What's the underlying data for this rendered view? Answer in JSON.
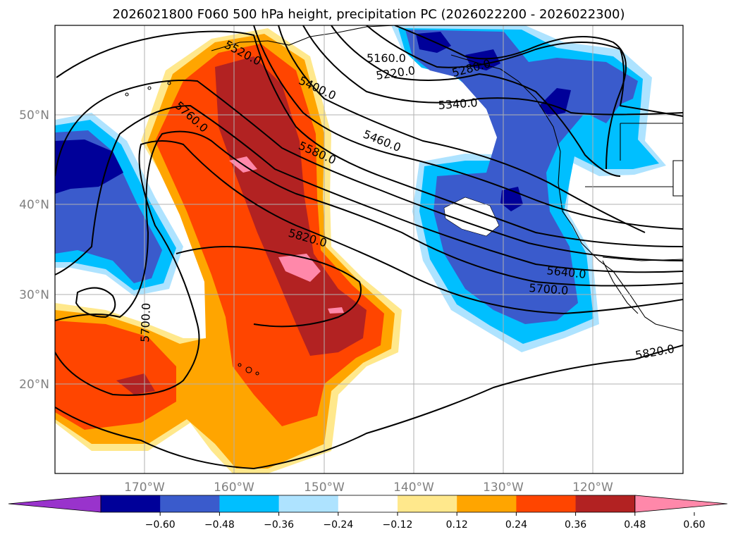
{
  "title": "2026021800 F060 500 hPa height, precipitation PC (2026022200 - 2026022300)",
  "map": {
    "lon_range": [
      -180,
      -110
    ],
    "lat_range": [
      10,
      60
    ],
    "lon_ticks": [
      {
        "value": -170,
        "label": "170°W"
      },
      {
        "value": -160,
        "label": "160°W"
      },
      {
        "value": -150,
        "label": "150°W"
      },
      {
        "value": -140,
        "label": "140°W"
      },
      {
        "value": -130,
        "label": "130°W"
      },
      {
        "value": -120,
        "label": "120°W"
      }
    ],
    "lat_ticks": [
      {
        "value": 20,
        "label": "20°N"
      },
      {
        "value": 30,
        "label": "30°N"
      },
      {
        "value": 40,
        "label": "40°N"
      },
      {
        "value": 50,
        "label": "50°N"
      }
    ],
    "gridlines": true
  },
  "contour_labels": [
    "5160.0",
    "5220.0",
    "5280.0",
    "5340.0",
    "5400.0",
    "5460.0",
    "5520.0",
    "5580.0",
    "5640.0",
    "5700.0",
    "5700.0",
    "5760.0",
    "5820.0",
    "5820.0"
  ],
  "colorbar": {
    "ticks": [
      "−0.60",
      "−0.48",
      "−0.36",
      "−0.24",
      "−0.12",
      "0.12",
      "0.24",
      "0.36",
      "0.48",
      "0.60"
    ],
    "colors": [
      "#9933cc",
      "#000099",
      "#3a5bcc",
      "#00bfff",
      "#aee3ff",
      "#ffffff",
      "#ffe88c",
      "#ffa500",
      "#ff4500",
      "#b22222",
      "#ff88aa"
    ],
    "extend": "both"
  }
}
